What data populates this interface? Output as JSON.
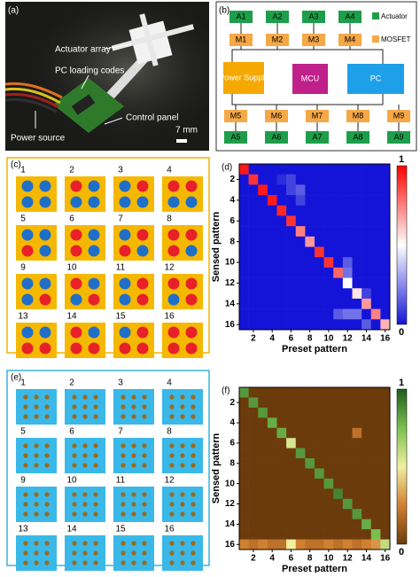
{
  "panel_a": {
    "label": "(a)",
    "callouts": [
      "Actuator array",
      "PC loading codes",
      "Control panel",
      "Power source"
    ],
    "scale": "7 mm"
  },
  "panel_b": {
    "label": "(b)",
    "top_actuators": [
      "A1",
      "A2",
      "A3",
      "A4"
    ],
    "top_mosfets": [
      "M1",
      "M2",
      "M3",
      "M4"
    ],
    "power": "Power Supply",
    "mcu": "MCU",
    "pc": "PC",
    "bottom_mosfets": [
      "M5",
      "M6",
      "M7",
      "M8",
      "M9"
    ],
    "bottom_actuators": [
      "A5",
      "A6",
      "A7",
      "A8",
      "A9"
    ],
    "legend": [
      "Actuator",
      "MOSFET"
    ]
  },
  "panel_c": {
    "label": "(c)",
    "numbers": [
      "1",
      "2",
      "3",
      "4",
      "5",
      "6",
      "7",
      "8",
      "9",
      "10",
      "11",
      "12",
      "13",
      "14",
      "15",
      "16"
    ],
    "colors": [
      "#1f6fc8",
      "#e8202a"
    ],
    "patterns": [
      [
        0,
        0,
        0,
        0
      ],
      [
        1,
        0,
        0,
        0
      ],
      [
        0,
        1,
        0,
        0
      ],
      [
        1,
        1,
        0,
        0
      ],
      [
        0,
        0,
        1,
        0
      ],
      [
        1,
        0,
        1,
        0
      ],
      [
        0,
        1,
        1,
        0
      ],
      [
        1,
        1,
        1,
        0
      ],
      [
        0,
        0,
        0,
        1
      ],
      [
        1,
        0,
        0,
        1
      ],
      [
        0,
        1,
        0,
        1
      ],
      [
        1,
        1,
        0,
        1
      ],
      [
        0,
        0,
        1,
        1
      ],
      [
        1,
        0,
        1,
        1
      ],
      [
        0,
        1,
        1,
        1
      ],
      [
        1,
        1,
        1,
        1
      ]
    ]
  },
  "panel_e": {
    "label": "(e)",
    "numbers": [
      "1",
      "2",
      "3",
      "4",
      "5",
      "6",
      "7",
      "8",
      "9",
      "10",
      "11",
      "12",
      "13",
      "14",
      "15",
      "16"
    ]
  },
  "chart_data": [
    {
      "type": "heatmap",
      "panel_label": "(d)",
      "xlabel": "Preset pattern",
      "ylabel": "Sensed pattern",
      "xlim": [
        0.5,
        16.5
      ],
      "ylim": [
        0.5,
        16.5
      ],
      "xticks": [
        2,
        4,
        6,
        8,
        10,
        12,
        14,
        16
      ],
      "yticks": [
        2,
        4,
        6,
        8,
        10,
        12,
        14,
        16
      ],
      "clim": [
        0,
        1
      ],
      "cticks": [
        0,
        1
      ],
      "colors": [
        "#1414d8",
        "#ffffff",
        "#ff0000"
      ],
      "matrix": [
        [
          0.95,
          0,
          0,
          0,
          0,
          0,
          0,
          0,
          0,
          0,
          0,
          0,
          0,
          0,
          0,
          0
        ],
        [
          0,
          0.9,
          0,
          0,
          0.05,
          0.1,
          0,
          0,
          0,
          0,
          0,
          0,
          0,
          0,
          0,
          0
        ],
        [
          0,
          0,
          0.95,
          0,
          0,
          0.1,
          0.15,
          0,
          0,
          0,
          0,
          0,
          0,
          0,
          0,
          0
        ],
        [
          0,
          0,
          0,
          0.95,
          0,
          0,
          0.1,
          0,
          0,
          0,
          0,
          0,
          0,
          0,
          0,
          0
        ],
        [
          0,
          0,
          0,
          0,
          0.92,
          0,
          0,
          0,
          0,
          0,
          0,
          0,
          0,
          0,
          0,
          0
        ],
        [
          0,
          0,
          0,
          0,
          0,
          0.9,
          0,
          0,
          0,
          0,
          0,
          0,
          0,
          0,
          0,
          0
        ],
        [
          0,
          0,
          0,
          0,
          0,
          0,
          0.75,
          0,
          0,
          0,
          0,
          0,
          0,
          0,
          0,
          0
        ],
        [
          0,
          0,
          0,
          0,
          0,
          0,
          0,
          0.7,
          0,
          0,
          0,
          0,
          0,
          0,
          0,
          0
        ],
        [
          0,
          0,
          0,
          0,
          0,
          0,
          0,
          0,
          0.9,
          0,
          0,
          0,
          0,
          0,
          0,
          0
        ],
        [
          0,
          0,
          0,
          0,
          0,
          0,
          0,
          0,
          0,
          0.9,
          0,
          0.15,
          0,
          0,
          0,
          0
        ],
        [
          0,
          0,
          0,
          0,
          0,
          0,
          0,
          0,
          0,
          0,
          0.8,
          0.2,
          0,
          0,
          0,
          0
        ],
        [
          0,
          0,
          0,
          0,
          0,
          0,
          0,
          0,
          0,
          0,
          0,
          0.5,
          0,
          0,
          0,
          0
        ],
        [
          0,
          0,
          0,
          0,
          0,
          0,
          0,
          0,
          0,
          0,
          0,
          0,
          0.55,
          0.1,
          0,
          0
        ],
        [
          0,
          0,
          0,
          0,
          0,
          0,
          0,
          0,
          0,
          0,
          0,
          0,
          0,
          0.7,
          0,
          0
        ],
        [
          0,
          0,
          0,
          0,
          0,
          0,
          0,
          0,
          0,
          0,
          0.15,
          0.2,
          0.2,
          0,
          0.75,
          0
        ],
        [
          0,
          0,
          0,
          0,
          0,
          0,
          0,
          0,
          0,
          0,
          0,
          0,
          0,
          0.15,
          0,
          0.65
        ]
      ]
    },
    {
      "type": "heatmap",
      "panel_label": "(f)",
      "xlabel": "Preset pattern",
      "ylabel": "Sensed pattern",
      "xlim": [
        0.5,
        16.5
      ],
      "ylim": [
        0.5,
        16.5
      ],
      "xticks": [
        2,
        4,
        6,
        8,
        10,
        12,
        14,
        16
      ],
      "yticks": [
        2,
        4,
        6,
        8,
        10,
        12,
        14,
        16
      ],
      "clim": [
        0,
        1
      ],
      "cticks": [
        0,
        1
      ],
      "colors": [
        "#6b3b0b",
        "#d08030",
        "#f0f0a0",
        "#7ac050",
        "#1e5e1e"
      ],
      "matrix": [
        [
          0.85,
          0,
          0,
          0,
          0,
          0,
          0,
          0,
          0,
          0,
          0,
          0,
          0,
          0,
          0,
          0
        ],
        [
          0,
          0.85,
          0,
          0,
          0,
          0,
          0,
          0,
          0,
          0,
          0,
          0,
          0,
          0,
          0,
          0
        ],
        [
          0,
          0,
          0.85,
          0,
          0,
          0,
          0,
          0,
          0,
          0,
          0,
          0,
          0,
          0,
          0,
          0
        ],
        [
          0,
          0,
          0,
          0.8,
          0,
          0,
          0,
          0,
          0,
          0,
          0,
          0,
          0,
          0,
          0,
          0
        ],
        [
          0,
          0,
          0,
          0,
          0.8,
          0,
          0,
          0,
          0,
          0,
          0,
          0,
          0.2,
          0,
          0,
          0
        ],
        [
          0,
          0,
          0,
          0,
          0,
          0.55,
          0,
          0,
          0,
          0,
          0,
          0,
          0,
          0,
          0,
          0
        ],
        [
          0,
          0,
          0,
          0,
          0,
          0,
          0.85,
          0,
          0,
          0,
          0,
          0,
          0,
          0,
          0,
          0
        ],
        [
          0,
          0,
          0,
          0,
          0,
          0,
          0,
          0.85,
          0,
          0,
          0,
          0,
          0,
          0,
          0,
          0
        ],
        [
          0,
          0,
          0,
          0,
          0,
          0,
          0,
          0,
          0.85,
          0,
          0,
          0,
          0,
          0,
          0,
          0
        ],
        [
          0,
          0,
          0,
          0,
          0,
          0,
          0,
          0,
          0,
          0.85,
          0,
          0,
          0,
          0,
          0,
          0
        ],
        [
          0,
          0,
          0,
          0,
          0,
          0,
          0,
          0,
          0,
          0,
          0.9,
          0,
          0,
          0,
          0,
          0
        ],
        [
          0,
          0,
          0,
          0,
          0,
          0,
          0,
          0,
          0,
          0,
          0,
          0.85,
          0,
          0,
          0,
          0
        ],
        [
          0,
          0,
          0,
          0,
          0,
          0,
          0,
          0,
          0,
          0,
          0,
          0,
          0.85,
          0,
          0,
          0
        ],
        [
          0,
          0,
          0,
          0,
          0,
          0,
          0,
          0,
          0,
          0,
          0,
          0,
          0,
          0.8,
          0,
          0
        ],
        [
          0,
          0,
          0,
          0,
          0,
          0,
          0,
          0,
          0,
          0,
          0,
          0,
          0,
          0,
          0.75,
          0
        ],
        [
          0.25,
          0.2,
          0.25,
          0.2,
          0.2,
          0.5,
          0.25,
          0.2,
          0.2,
          0.25,
          0.2,
          0.25,
          0.2,
          0.25,
          0.3,
          0.6
        ]
      ]
    }
  ]
}
